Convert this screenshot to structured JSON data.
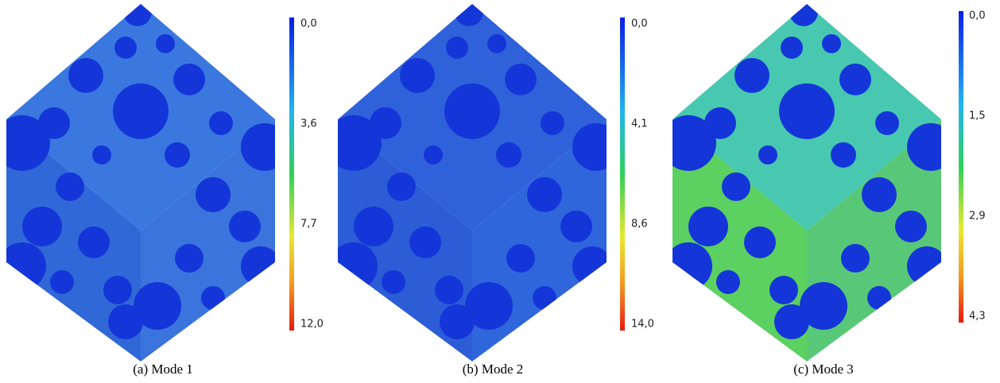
{
  "panels": [
    {
      "caption": "(a) Mode 1",
      "colorbar_labels": [
        "0,0",
        "3,6",
        "7,7",
        "12,0"
      ]
    },
    {
      "caption": "(b) Mode 2",
      "colorbar_labels": [
        "0,0",
        "4,1",
        "8,6",
        "14,0"
      ]
    },
    {
      "caption": "(c) Mode 3",
      "colorbar_labels": [
        "0,0",
        "1,5",
        "2,9",
        "4,3"
      ]
    }
  ]
}
